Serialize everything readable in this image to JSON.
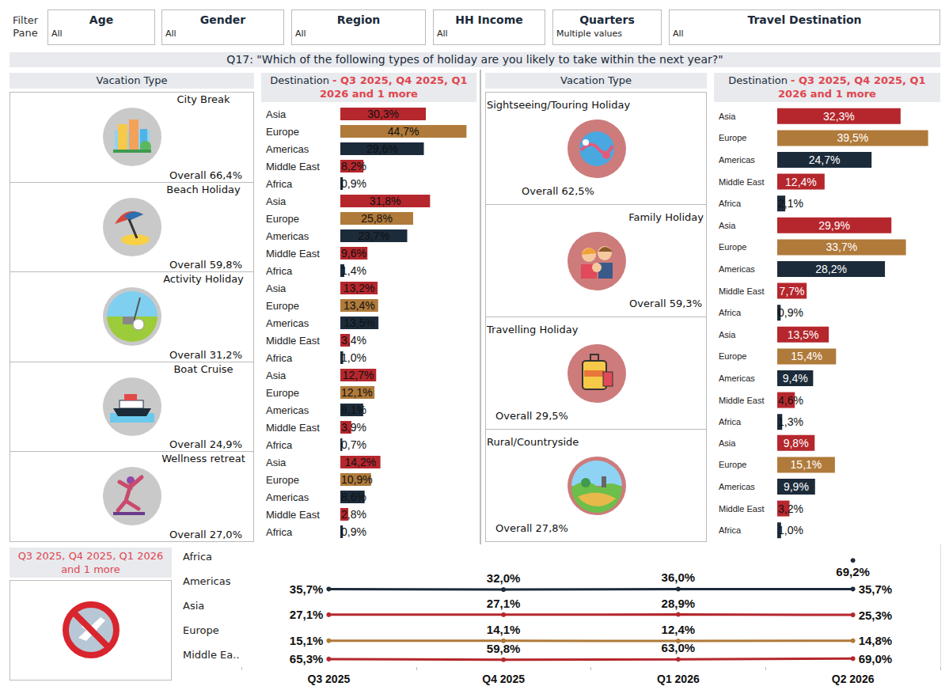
{
  "filter_pane": {
    "label": "Filter Pane",
    "filters": [
      {
        "name": "Age",
        "value": "All"
      },
      {
        "name": "Gender",
        "value": "All"
      },
      {
        "name": "Region",
        "value": "All"
      },
      {
        "name": "HH Income",
        "value": "All"
      },
      {
        "name": "Quarters",
        "value": "Multiple values"
      },
      {
        "name": "Travel Destination",
        "value": "All"
      }
    ]
  },
  "title": "Q17: \"Which of the following types of holiday are you likely to take within the next year?\"",
  "panels": [
    {
      "header": "Vacation Type",
      "destination_title": "Destination",
      "destination_period": "- Q3 2025, Q4 2025, Q1 2026 and 1 more",
      "chart_data": [
        {
          "type": "bar",
          "title": "City Break",
          "subtitle": "Overall 66,4%",
          "orientation": "horizontal",
          "categories": [
            "Asia",
            "Europe",
            "Americas",
            "Middle East",
            "Africa"
          ],
          "values": [
            30.3,
            44.7,
            29.6,
            8.2,
            0.9
          ],
          "value_labels": [
            "30,3%",
            "44,7%",
            "29,6%",
            "8,2%",
            "0,9%"
          ],
          "colors": [
            "#b5272d",
            "#b07a3a",
            "#1c2b3a",
            "#b5272d",
            "#1c2b3a"
          ],
          "xlim": [
            0,
            46
          ],
          "grid": false,
          "data_labels": true,
          "tick_labels": "y"
        },
        {
          "type": "bar",
          "title": "Beach Holiday",
          "subtitle": "Overall 59,8%",
          "orientation": "horizontal",
          "categories": [
            "Asia",
            "Europe",
            "Americas",
            "Middle East",
            "Africa"
          ],
          "values": [
            31.8,
            25.8,
            23.7,
            9.6,
            1.4
          ],
          "value_labels": [
            "31,8%",
            "25,8%",
            "23,7%",
            "9,6%",
            "1,4%"
          ],
          "colors": [
            "#b5272d",
            "#b07a3a",
            "#1c2b3a",
            "#b5272d",
            "#1c2b3a"
          ],
          "xlim": [
            0,
            46
          ],
          "grid": false,
          "data_labels": true,
          "tick_labels": "y"
        },
        {
          "type": "bar",
          "title": "Activity Holiday",
          "subtitle": "Overall 31,2%",
          "orientation": "horizontal",
          "categories": [
            "Asia",
            "Europe",
            "Americas",
            "Middle East",
            "Africa"
          ],
          "values": [
            13.2,
            13.4,
            13.5,
            3.4,
            1.0
          ],
          "value_labels": [
            "13,2%",
            "13,4%",
            "13,5%",
            "3,4%",
            "1,0%"
          ],
          "colors": [
            "#b5272d",
            "#b07a3a",
            "#1c2b3a",
            "#b5272d",
            "#1c2b3a"
          ],
          "xlim": [
            0,
            46
          ],
          "grid": false,
          "data_labels": true,
          "tick_labels": "y"
        },
        {
          "type": "bar",
          "title": "Boat Cruise",
          "subtitle": "Overall 24,9%",
          "orientation": "horizontal",
          "categories": [
            "Asia",
            "Europe",
            "Americas",
            "Middle East",
            "Africa"
          ],
          "values": [
            12.7,
            12.1,
            8.1,
            3.9,
            0.7
          ],
          "value_labels": [
            "12,7%",
            "12,1%",
            "8,1%",
            "3,9%",
            "0,7%"
          ],
          "colors": [
            "#b5272d",
            "#b07a3a",
            "#1c2b3a",
            "#b5272d",
            "#1c2b3a"
          ],
          "xlim": [
            0,
            46
          ],
          "grid": false,
          "data_labels": true,
          "tick_labels": "y"
        },
        {
          "type": "bar",
          "title": "Wellness retreat",
          "subtitle": "Overall 27,0%",
          "orientation": "horizontal",
          "categories": [
            "Asia",
            "Europe",
            "Americas",
            "Middle East",
            "Africa"
          ],
          "values": [
            14.2,
            10.9,
            8.6,
            2.8,
            0.9
          ],
          "value_labels": [
            "14,2%",
            "10,9%",
            "8,6%",
            "2,8%",
            "0,9%"
          ],
          "colors": [
            "#b5272d",
            "#b07a3a",
            "#1c2b3a",
            "#b5272d",
            "#1c2b3a"
          ],
          "xlim": [
            0,
            46
          ],
          "grid": false,
          "data_labels": true,
          "tick_labels": "y"
        }
      ]
    },
    {
      "header": "Vacation Type",
      "destination_title": "Destination",
      "destination_period": "- Q3 2025, Q4 2025, Q1 2026 and 1 more",
      "chart_data": [
        {
          "type": "bar",
          "title": "Sightseeing/Touring Holiday",
          "subtitle": "Overall 62,5%",
          "orientation": "horizontal",
          "categories": [
            "Asia",
            "Europe",
            "Americas",
            "Middle East",
            "Africa"
          ],
          "values": [
            32.3,
            39.5,
            24.7,
            12.4,
            2.1
          ],
          "value_labels": [
            "32,3%",
            "39,5%",
            "24,7%",
            "12,4%",
            "2,1%"
          ],
          "colors": [
            "#b5272d",
            "#b07a3a",
            "#1c2b3a",
            "#b5272d",
            "#1c2b3a"
          ],
          "xlim": [
            0,
            40
          ],
          "grid": false,
          "data_labels": true,
          "tick_labels": "y"
        },
        {
          "type": "bar",
          "title": "Family Holiday",
          "subtitle": "Overall 59,3%",
          "orientation": "horizontal",
          "categories": [
            "Asia",
            "Europe",
            "Americas",
            "Middle East",
            "Africa"
          ],
          "values": [
            29.9,
            33.7,
            28.2,
            7.7,
            0.9
          ],
          "value_labels": [
            "29,9%",
            "33,7%",
            "28,2%",
            "7,7%",
            "0,9%"
          ],
          "colors": [
            "#b5272d",
            "#b07a3a",
            "#1c2b3a",
            "#b5272d",
            "#1c2b3a"
          ],
          "xlim": [
            0,
            40
          ],
          "grid": false,
          "data_labels": true,
          "tick_labels": "y"
        },
        {
          "type": "bar",
          "title": "Travelling Holiday",
          "subtitle": "Overall 29,5%",
          "orientation": "horizontal",
          "categories": [
            "Asia",
            "Europe",
            "Americas",
            "Middle East",
            "Africa"
          ],
          "values": [
            13.5,
            15.4,
            9.4,
            4.6,
            1.3
          ],
          "value_labels": [
            "13,5%",
            "15,4%",
            "9,4%",
            "4,6%",
            "1,3%"
          ],
          "colors": [
            "#b5272d",
            "#b07a3a",
            "#1c2b3a",
            "#b5272d",
            "#1c2b3a"
          ],
          "xlim": [
            0,
            40
          ],
          "grid": false,
          "data_labels": true,
          "tick_labels": "y"
        },
        {
          "type": "bar",
          "title": "Rural/Countryside",
          "subtitle": "Overall 27,8%",
          "orientation": "horizontal",
          "categories": [
            "Asia",
            "Europe",
            "Americas",
            "Middle East",
            "Africa"
          ],
          "values": [
            9.8,
            15.1,
            9.9,
            3.2,
            1.0
          ],
          "value_labels": [
            "9,8%",
            "15,1%",
            "9,9%",
            "3,2%",
            "1,0%"
          ],
          "colors": [
            "#b5272d",
            "#b07a3a",
            "#1c2b3a",
            "#b5272d",
            "#1c2b3a"
          ],
          "xlim": [
            0,
            40
          ],
          "grid": false,
          "data_labels": true,
          "tick_labels": "y"
        }
      ]
    }
  ],
  "chart_data": {
    "type": "line",
    "subtitle": "Q3 2025, Q4 2025, Q1 2026 and 1 more",
    "categories": [
      "Q3 2025",
      "Q4 2025",
      "Q1 2026",
      "Q2 2026"
    ],
    "series": [
      {
        "name": "Africa",
        "color": "#1c2b3a",
        "values": [
          null,
          null,
          null,
          69.2
        ],
        "value_labels": [
          null,
          null,
          null,
          "69,2%"
        ]
      },
      {
        "name": "Americas",
        "color": "#1c2b3a",
        "values": [
          35.7,
          32.0,
          36.0,
          35.7
        ],
        "value_labels": [
          "35,7%",
          "32,0%",
          "36,0%",
          "35,7%"
        ]
      },
      {
        "name": "Asia",
        "color": "#b5272d",
        "values": [
          27.1,
          27.1,
          28.9,
          25.3
        ],
        "value_labels": [
          "27,1%",
          "27,1%",
          "28,9%",
          "25,3%"
        ]
      },
      {
        "name": "Europe",
        "color": "#b07a3a",
        "values": [
          15.1,
          14.1,
          12.4,
          14.8
        ],
        "value_labels": [
          "15,1%",
          "14,1%",
          "12,4%",
          "14,8%"
        ]
      },
      {
        "name": "Middle Ea..",
        "color": "#b5272d",
        "values": [
          65.3,
          59.8,
          63.0,
          69.0
        ],
        "value_labels": [
          "65,3%",
          "59,8%",
          "63,0%",
          "69,0%"
        ]
      }
    ],
    "ylim": [
      0,
      200
    ],
    "grid": false,
    "data_labels": true,
    "tick_labels": "x",
    "marker": "circle"
  }
}
